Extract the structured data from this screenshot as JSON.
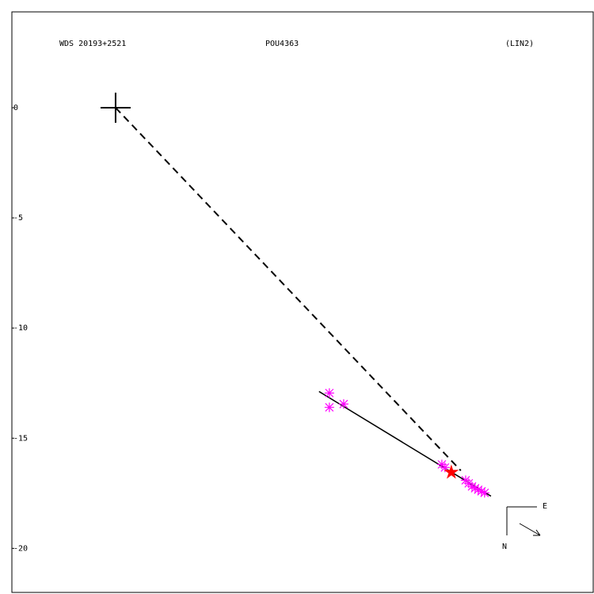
{
  "chart_data": {
    "type": "scatter",
    "title": "WDS 20193+2521",
    "subtitle": "POU4363",
    "annotation": "(LIN2)",
    "compass": {
      "east": "E",
      "north": "N"
    },
    "xlim": [
      -4.71,
      21.73
    ],
    "ylim": [
      -22.0,
      4.35
    ],
    "yticks": [
      0,
      -5,
      -10,
      -15,
      -20
    ],
    "series": [
      {
        "color": "#ff00ff",
        "marker": "asterisk",
        "x": [
          9.71,
          9.71,
          10.36,
          14.82,
          14.96,
          15.9,
          16.04,
          16.19,
          16.33,
          16.47,
          16.62,
          16.76
        ],
        "values": [
          -12.95,
          -13.6,
          -13.45,
          -16.19,
          -16.33,
          -16.91,
          -17.05,
          -17.19,
          -17.27,
          -17.34,
          -17.41,
          -17.48
        ]
      },
      {
        "color": "#ff0000",
        "marker": "star",
        "x": [
          15.25
        ],
        "values": [
          -16.55
        ]
      },
      {
        "color": "#000000",
        "marker": "plus",
        "x": [
          0
        ],
        "values": [
          0
        ]
      }
    ],
    "fit_line": {
      "color": "#000000",
      "x": [
        9.24,
        17.05
      ],
      "values": [
        -12.88,
        -17.63
      ]
    },
    "offset_line": {
      "color": "#000000",
      "dashed": true,
      "x": [
        0,
        15.68
      ],
      "values": [
        0,
        -16.47
      ]
    }
  }
}
